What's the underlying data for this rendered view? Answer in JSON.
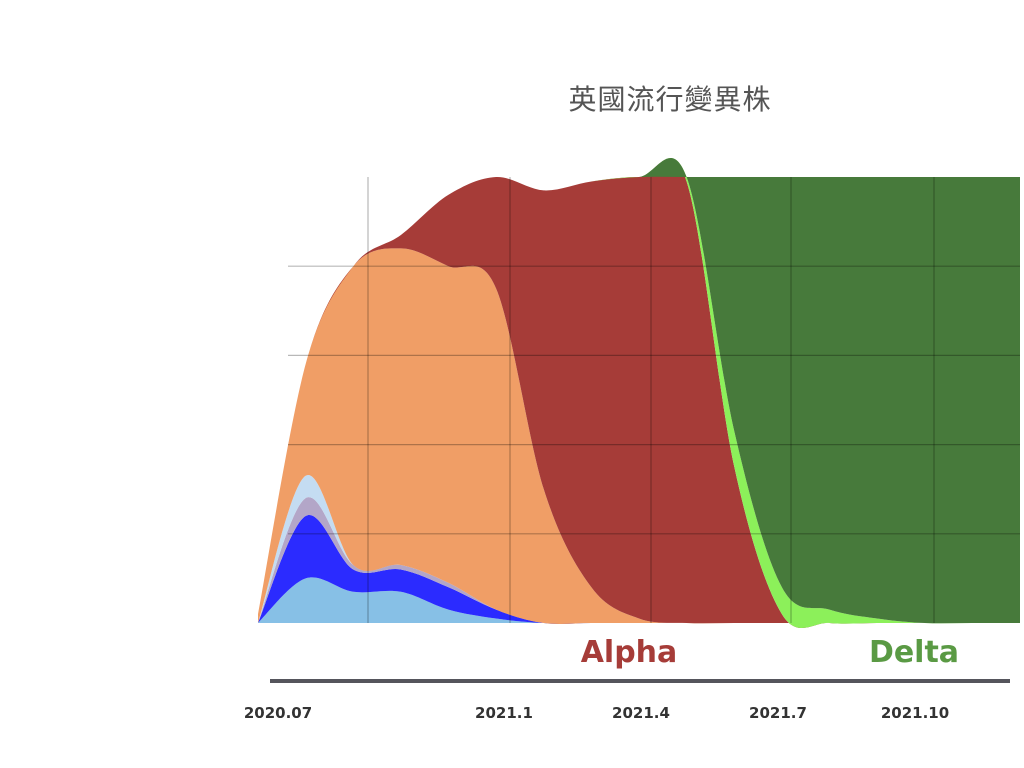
{
  "chart_data": {
    "type": "area",
    "title": "英國流行變異株",
    "xlabel": "",
    "ylabel": "",
    "x_ticks": [
      "2020.07",
      "2021.1",
      "2021.4",
      "2021.7",
      "2021.10"
    ],
    "x": [
      "2020-07",
      "2020-08",
      "2020-09",
      "2020-10",
      "2020-11",
      "2020-12",
      "2021-01",
      "2021-02",
      "2021-03",
      "2021-04",
      "2021-05",
      "2021-06",
      "2021-07",
      "2021-08",
      "2021-09",
      "2021-10",
      "2021-11"
    ],
    "ylim": [
      0,
      100
    ],
    "stacked": true,
    "grid": true,
    "series": [
      {
        "color": "#87c0e6",
        "values": [
          0,
          10,
          7,
          7,
          3,
          1,
          0,
          0,
          0,
          0,
          0,
          0,
          0,
          0,
          0,
          0,
          0
        ]
      },
      {
        "color": "#2b2bff",
        "values": [
          0,
          14,
          5,
          5,
          5,
          2,
          0,
          0,
          0,
          0,
          0,
          0,
          0,
          0,
          0,
          0,
          0
        ]
      },
      {
        "color": "#b3a6c8",
        "values": [
          0,
          4,
          1,
          1,
          1,
          0,
          0,
          0,
          0,
          0,
          0,
          0,
          0,
          0,
          0,
          0,
          0
        ]
      },
      {
        "color": "#c4dcf2",
        "values": [
          0,
          5,
          0,
          0,
          0,
          0,
          0,
          0,
          0,
          0,
          0,
          0,
          0,
          0,
          0,
          0,
          0
        ]
      },
      {
        "color": "#f09e66",
        "values": [
          2,
          25,
          67,
          71,
          71,
          72,
          30,
          8,
          1,
          0,
          0,
          0,
          0,
          0,
          0,
          0,
          0
        ]
      },
      {
        "color": "#a63c38",
        "values": [
          0,
          0,
          0,
          3,
          16,
          25,
          67,
          91,
          99,
          99,
          35,
          2,
          0,
          0,
          0,
          0,
          0
        ]
      },
      {
        "color": "#8cf05a",
        "values": [
          0,
          0,
          0,
          0,
          0,
          0,
          0,
          0,
          0,
          1,
          8,
          6,
          3,
          1,
          0,
          0,
          0
        ]
      },
      {
        "color": "#477a3b",
        "values": [
          0,
          0,
          0,
          0,
          0,
          0,
          0,
          0,
          0,
          0,
          57,
          92,
          97,
          99,
          100,
          100,
          100
        ]
      }
    ],
    "annotations": [
      {
        "text": "Alpha",
        "color": "#a63c38"
      },
      {
        "text": "Delta",
        "color": "#5a9a44"
      }
    ]
  }
}
